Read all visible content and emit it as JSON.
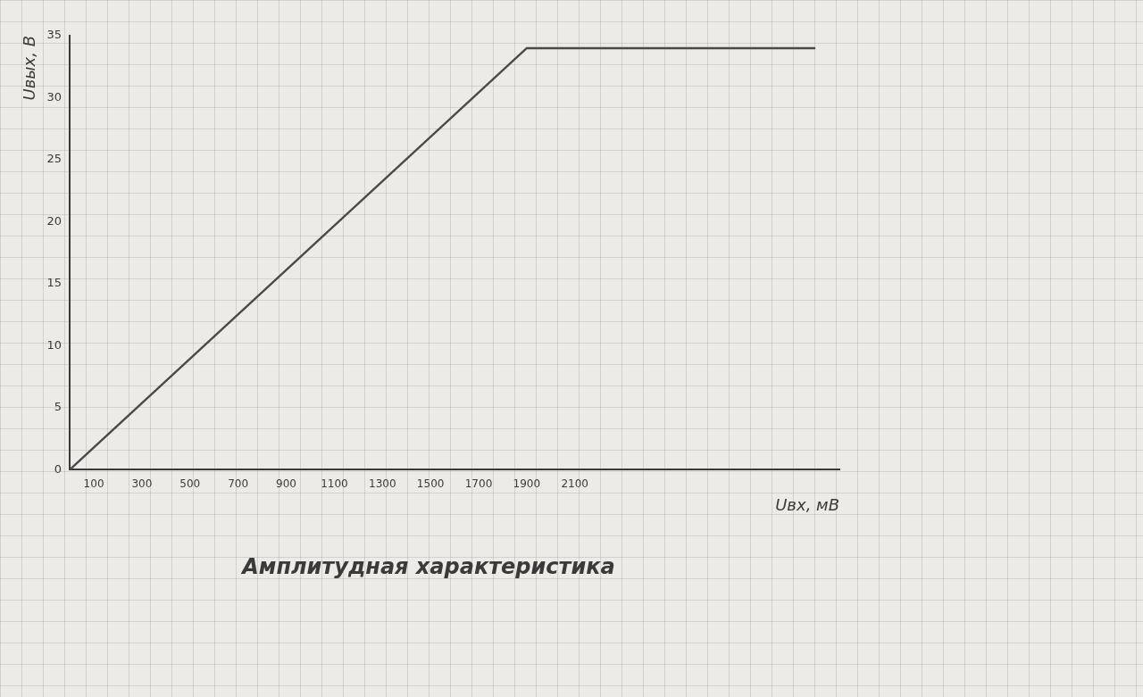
{
  "chart_data": {
    "type": "line",
    "title": "Амплитудная характеристика",
    "x_label": "Uвх, мВ",
    "y_label": "Uвых, В",
    "x": [
      0,
      1900,
      3100
    ],
    "values": [
      0,
      34,
      34
    ],
    "color": "#4a4a4a",
    "xlim": [
      0,
      3200
    ],
    "xticks": [
      100,
      300,
      500,
      700,
      900,
      1100,
      1300,
      1500,
      1700,
      1900,
      2100
    ],
    "ylim": [
      0,
      35
    ],
    "yticks": [
      0,
      5,
      10,
      15,
      20,
      25,
      30,
      35
    ],
    "grid": false
  }
}
